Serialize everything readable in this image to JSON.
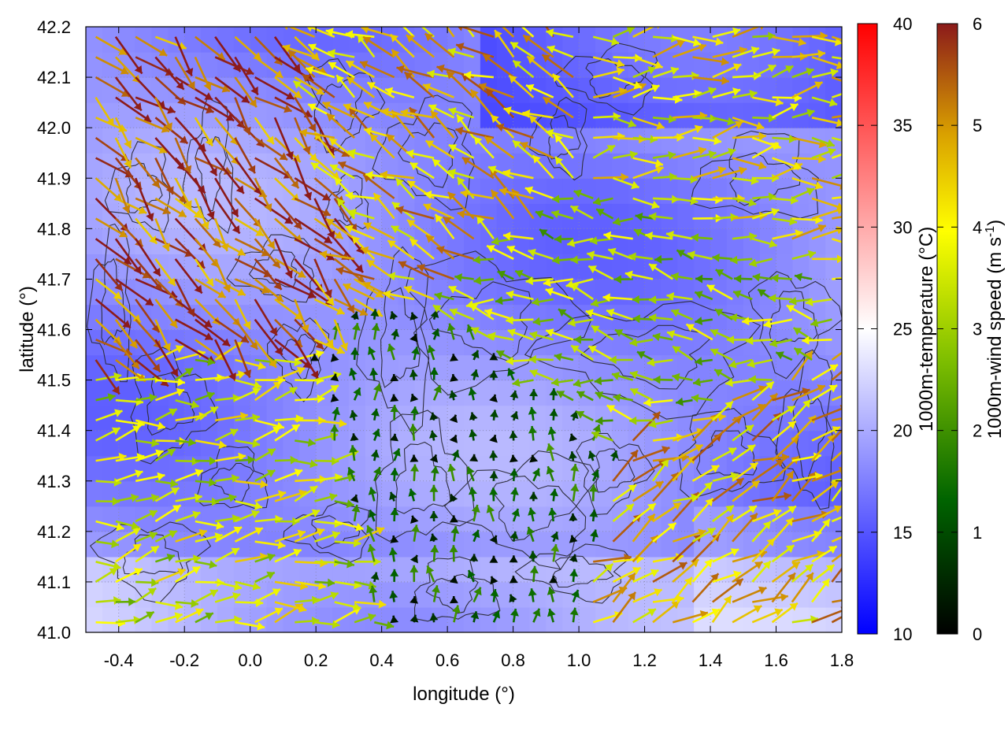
{
  "chart_data": {
    "type": "heatmap",
    "title": "",
    "xlabel": "longitude (°)",
    "ylabel": "latitude (°)",
    "xlim": [
      -0.5,
      1.8
    ],
    "ylim": [
      41.0,
      42.2
    ],
    "x_ticks": [
      "-0.4",
      "-0.2",
      "0.0",
      "0.2",
      "0.4",
      "0.6",
      "0.8",
      "1.0",
      "1.2",
      "1.4",
      "1.6",
      "1.8"
    ],
    "y_ticks": [
      "41.0",
      "41.1",
      "41.2",
      "41.3",
      "41.4",
      "41.5",
      "41.6",
      "41.7",
      "41.8",
      "41.9",
      "42.0",
      "42.1",
      "42.2"
    ],
    "grid": true,
    "temperature_colorbar": {
      "label": "1000m-temperature (°C)",
      "range": [
        10,
        40
      ],
      "ticks": [
        "10",
        "15",
        "20",
        "25",
        "30",
        "35",
        "40"
      ],
      "colors": [
        "#0000ff",
        "#ffffff",
        "#ff0000"
      ]
    },
    "wind_colorbar": {
      "label_main": "1000m-wind speed (m s",
      "label_sup": "-1",
      "label_end": ")",
      "range": [
        0,
        6
      ],
      "ticks": [
        "0",
        "1",
        "2",
        "3",
        "4",
        "5",
        "6"
      ],
      "colors": [
        "#000000",
        "#006400",
        "#7fbf00",
        "#ffff00",
        "#d9a000",
        "#8b1a1a"
      ]
    },
    "temperature_field_range": [
      13,
      23
    ],
    "wind_field": {
      "description_regions": [
        {
          "region": "northwest",
          "lon": [
            -0.5,
            0.2
          ],
          "lat": [
            41.6,
            42.2
          ],
          "speed": 5.5,
          "direction_deg": 315
        },
        {
          "region": "north-central",
          "lon": [
            0.3,
            0.9
          ],
          "lat": [
            41.8,
            42.2
          ],
          "speed": 4.5,
          "direction_deg": 150
        },
        {
          "region": "northeast",
          "lon": [
            1.0,
            1.8
          ],
          "lat": [
            41.8,
            42.2
          ],
          "speed": 4.0,
          "direction_deg": 5
        },
        {
          "region": "central-east",
          "lon": [
            0.5,
            1.8
          ],
          "lat": [
            41.5,
            41.8
          ],
          "speed": 3.0,
          "direction_deg": 170
        },
        {
          "region": "center",
          "lon": [
            0.4,
            0.9
          ],
          "lat": [
            41.1,
            41.5
          ],
          "speed": 1.0,
          "direction_deg": 90
        },
        {
          "region": "southwest",
          "lon": [
            -0.5,
            0.4
          ],
          "lat": [
            41.0,
            41.4
          ],
          "speed": 3.5,
          "direction_deg": 10
        },
        {
          "region": "southeast",
          "lon": [
            1.2,
            1.8
          ],
          "lat": [
            41.0,
            41.4
          ],
          "speed": 4.5,
          "direction_deg": 30
        }
      ]
    }
  }
}
